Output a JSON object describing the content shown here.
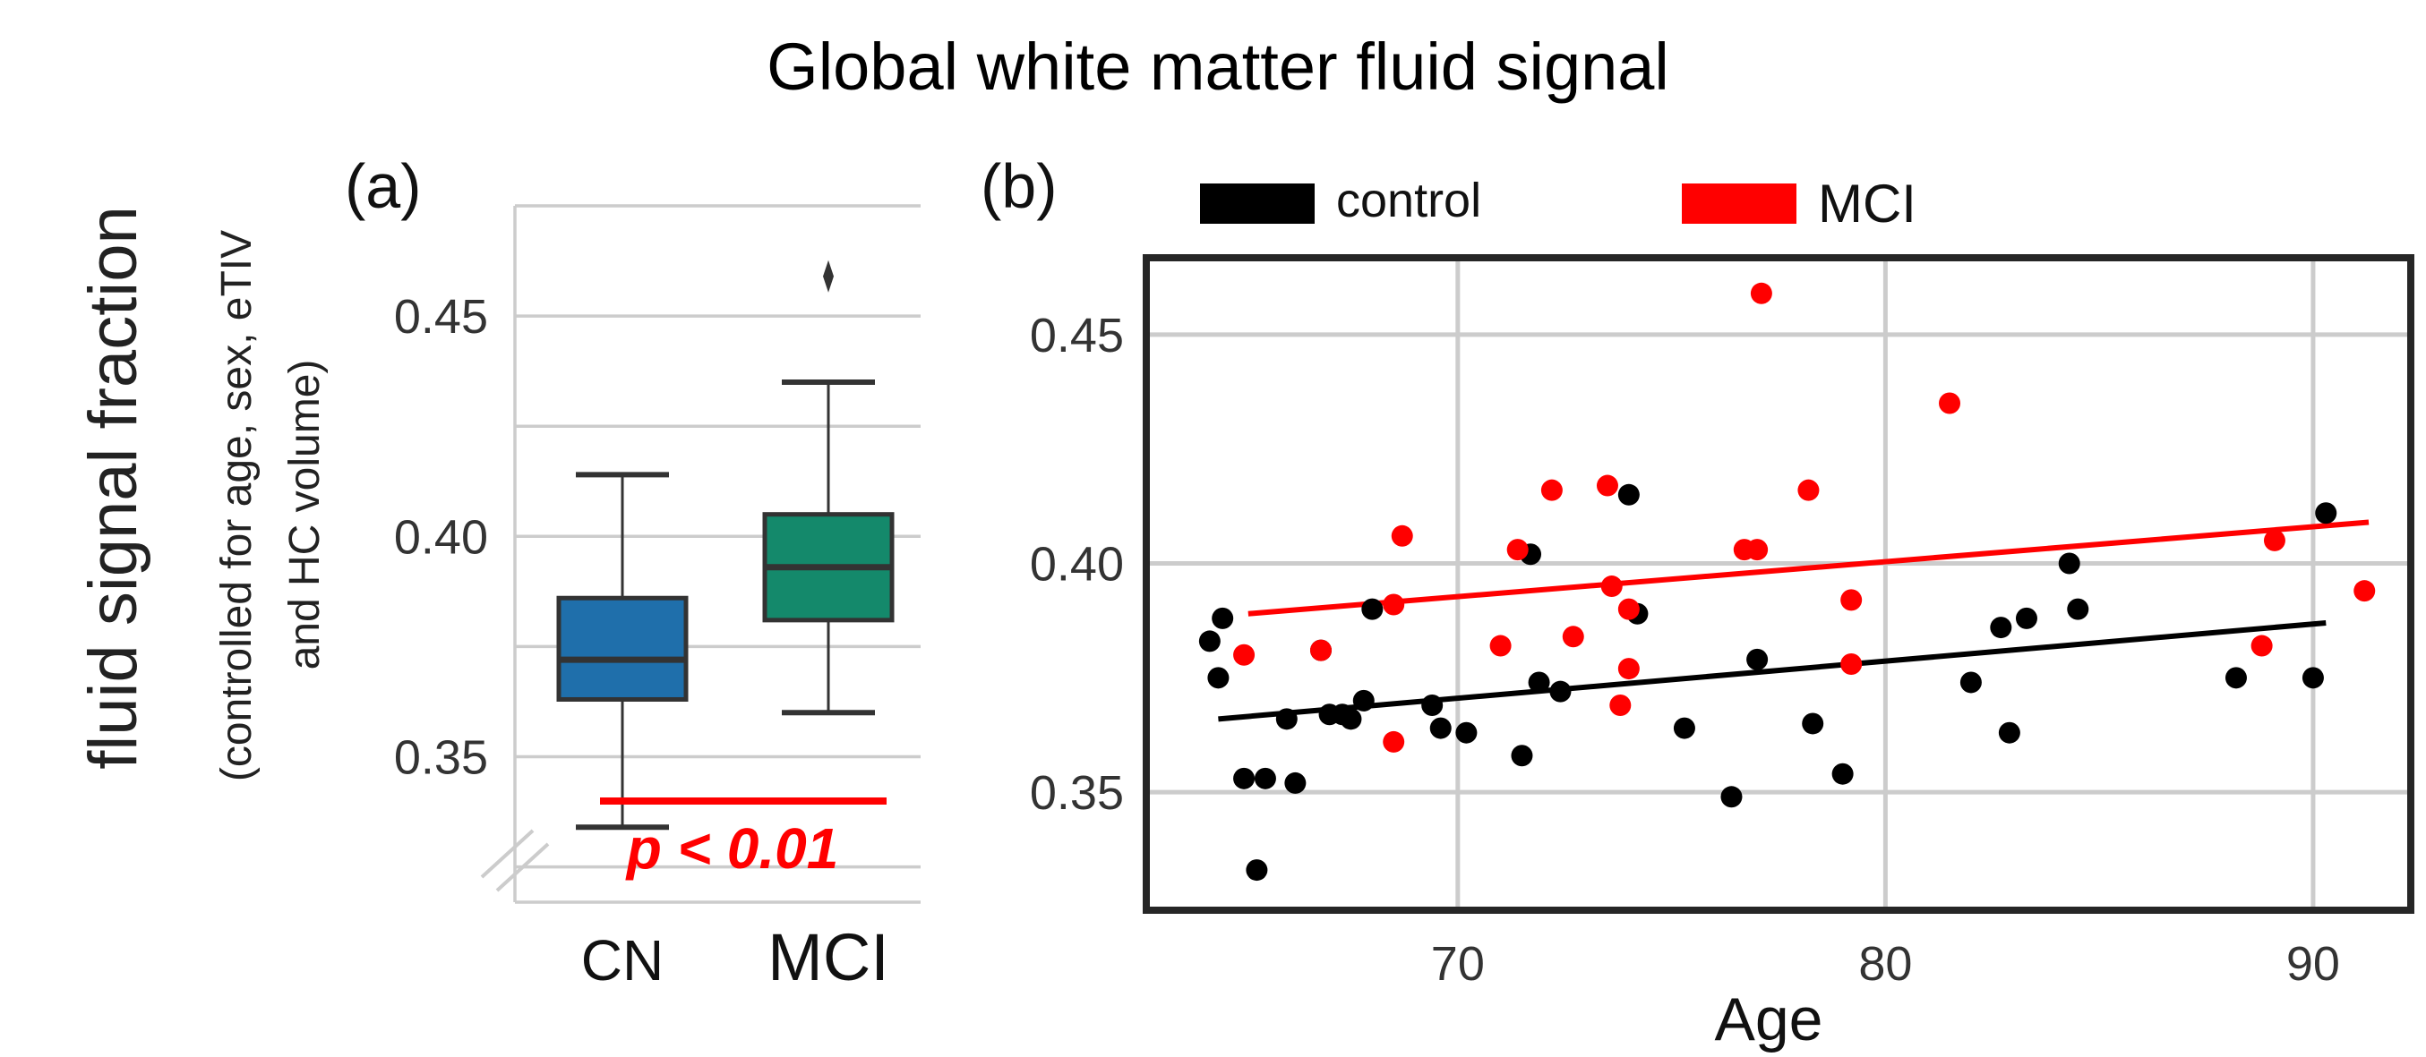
{
  "title": "Global white matter fluid signal",
  "y_label": "fluid signal fraction",
  "y_sublabel_lines": [
    "(controlled for age, sex, eTIV",
    "and HC volume)"
  ],
  "colors": {
    "control": "#000000",
    "mci": "#ff0000",
    "cn_box": "#1f6fab",
    "mci_box": "#14896b",
    "grid": "#cccccc"
  },
  "chart_data": [
    {
      "type": "box",
      "panel_label": "(a)",
      "categories": [
        "CN",
        "MCI"
      ],
      "boxes": [
        {
          "name": "CN",
          "whisker_low": 0.334,
          "q1": 0.363,
          "median": 0.372,
          "q3": 0.386,
          "whisker_high": 0.414,
          "outliers": []
        },
        {
          "name": "MCI",
          "whisker_low": 0.36,
          "q1": 0.381,
          "median": 0.393,
          "q3": 0.405,
          "whisker_high": 0.435,
          "outliers": [
            0.459
          ]
        }
      ],
      "ylim": [
        0.317,
        0.475
      ],
      "yticks": [
        0.35,
        0.4,
        0.45
      ],
      "ytick_labels": [
        "0.35",
        "0.40",
        "0.45"
      ],
      "annotation": "p < 0.01",
      "axis_break": true,
      "grid": true
    },
    {
      "type": "scatter",
      "panel_label": "(b)",
      "xlabel": "Age",
      "xlim": [
        62.8,
        92.2
      ],
      "ylim": [
        0.325,
        0.466
      ],
      "xticks": [
        70,
        80,
        90
      ],
      "xtick_labels": [
        "70",
        "80",
        "90"
      ],
      "yticks": [
        0.35,
        0.4,
        0.45
      ],
      "ytick_labels": [
        "0.35",
        "0.40",
        "0.45"
      ],
      "legend": {
        "placement": "above",
        "entries": [
          "control",
          "MCI"
        ]
      },
      "grid": true,
      "series": [
        {
          "name": "control",
          "color": "#000000",
          "trend": {
            "x": [
              64.4,
              90.3
            ],
            "y": [
              0.366,
              0.387
            ]
          },
          "points": [
            [
              64.2,
              0.383
            ],
            [
              64.4,
              0.375
            ],
            [
              64.5,
              0.388
            ],
            [
              65.0,
              0.353
            ],
            [
              65.5,
              0.353
            ],
            [
              66.0,
              0.366
            ],
            [
              66.2,
              0.352
            ],
            [
              66.8,
              0.381
            ],
            [
              67.0,
              0.367
            ],
            [
              67.3,
              0.367
            ],
            [
              67.5,
              0.366
            ],
            [
              67.8,
              0.37
            ],
            [
              68.0,
              0.39
            ],
            [
              69.4,
              0.369
            ],
            [
              69.6,
              0.364
            ],
            [
              70.2,
              0.363
            ],
            [
              71.5,
              0.358
            ],
            [
              71.7,
              0.402
            ],
            [
              71.9,
              0.374
            ],
            [
              72.4,
              0.372
            ],
            [
              74.0,
              0.415
            ],
            [
              74.2,
              0.389
            ],
            [
              75.3,
              0.364
            ],
            [
              76.4,
              0.349
            ],
            [
              77.0,
              0.379
            ],
            [
              78.3,
              0.365
            ],
            [
              79.0,
              0.354
            ],
            [
              82.0,
              0.374
            ],
            [
              82.7,
              0.386
            ],
            [
              82.9,
              0.363
            ],
            [
              83.3,
              0.388
            ],
            [
              84.3,
              0.4
            ],
            [
              84.5,
              0.39
            ],
            [
              65.3,
              0.333
            ],
            [
              88.2,
              0.375
            ],
            [
              90.0,
              0.375
            ],
            [
              90.3,
              0.411
            ]
          ]
        },
        {
          "name": "MCI",
          "color": "#ff0000",
          "trend": {
            "x": [
              65.1,
              91.3
            ],
            "y": [
              0.389,
              0.409
            ]
          },
          "points": [
            [
              65.0,
              0.38
            ],
            [
              66.8,
              0.381
            ],
            [
              68.5,
              0.361
            ],
            [
              68.5,
              0.391
            ],
            [
              68.7,
              0.406
            ],
            [
              71.0,
              0.382
            ],
            [
              71.4,
              0.403
            ],
            [
              72.2,
              0.416
            ],
            [
              72.7,
              0.384
            ],
            [
              73.5,
              0.417
            ],
            [
              73.6,
              0.395
            ],
            [
              73.8,
              0.369
            ],
            [
              74.0,
              0.377
            ],
            [
              74.0,
              0.39
            ],
            [
              76.7,
              0.403
            ],
            [
              77.0,
              0.403
            ],
            [
              77.1,
              0.459
            ],
            [
              78.2,
              0.416
            ],
            [
              79.2,
              0.392
            ],
            [
              79.2,
              0.378
            ],
            [
              81.5,
              0.435
            ],
            [
              88.8,
              0.382
            ],
            [
              89.1,
              0.405
            ],
            [
              91.2,
              0.394
            ]
          ]
        }
      ]
    }
  ]
}
